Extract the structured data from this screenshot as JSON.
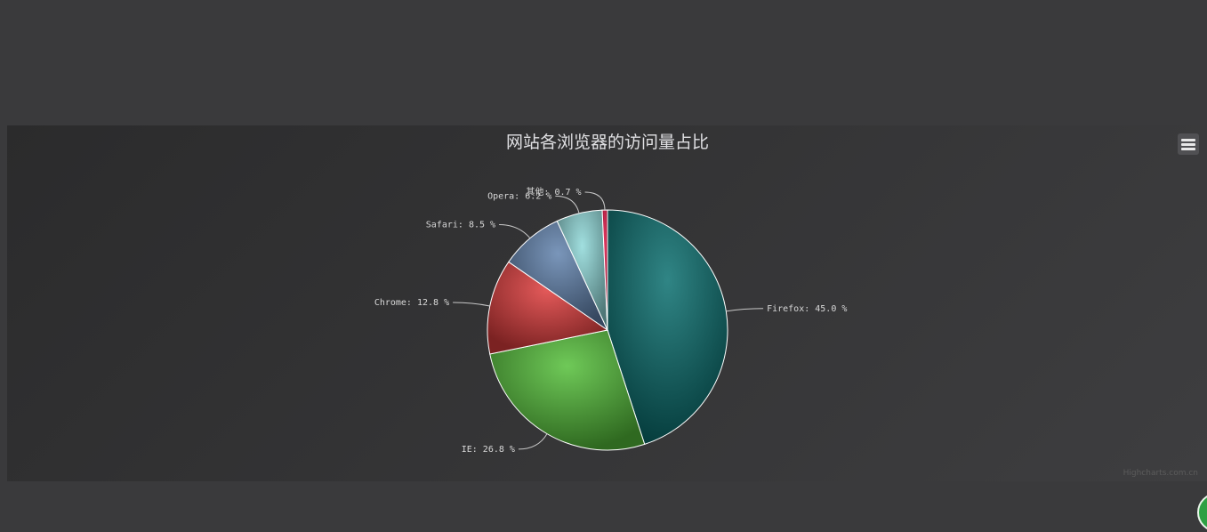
{
  "chart_data": {
    "type": "pie",
    "title": "网站各浏览器的访问量占比",
    "unit_suffix": " %",
    "series": [
      {
        "name": "Firefox",
        "value": 45.0,
        "label": "Firefox: 45.0 %",
        "color": "#0b7070"
      },
      {
        "name": "IE",
        "value": 26.8,
        "label": "IE: 26.8 %",
        "color": "#55bf3b"
      },
      {
        "name": "Chrome",
        "value": 12.8,
        "label": "Chrome: 12.8 %",
        "color": "#df3d3d"
      },
      {
        "name": "Safari",
        "value": 8.5,
        "label": "Safari: 8.5 %",
        "color": "#6283ae"
      },
      {
        "name": "Opera",
        "value": 6.2,
        "label": "Opera: 6.2 %",
        "color": "#90d9d9"
      },
      {
        "name": "其他",
        "value": 0.7,
        "label": "其他: 0.7 %",
        "color": "#e8184a"
      }
    ]
  },
  "credits": "Highcharts.com.cn"
}
